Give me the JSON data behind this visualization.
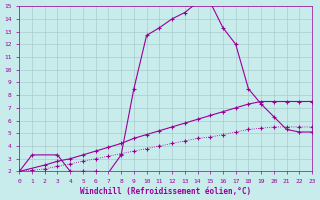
{
  "xlabel": "Windchill (Refroidissement éolien,°C)",
  "bg_color": "#c8ecec",
  "line_color": "#990099",
  "grid_color": "#aacccc",
  "axis_label_color": "#990099",
  "tick_color": "#990099",
  "xlim": [
    0,
    23
  ],
  "ylim": [
    2,
    15
  ],
  "xticks": [
    0,
    1,
    2,
    3,
    4,
    5,
    6,
    7,
    8,
    9,
    10,
    11,
    12,
    13,
    14,
    15,
    16,
    17,
    18,
    19,
    20,
    21,
    22,
    23
  ],
  "yticks": [
    2,
    3,
    4,
    5,
    6,
    7,
    8,
    9,
    10,
    11,
    12,
    13,
    14,
    15
  ],
  "line1_x": [
    0,
    1,
    2,
    3,
    4,
    5,
    6,
    7,
    8,
    9,
    10,
    11,
    12,
    13,
    14,
    15,
    16,
    17,
    18,
    19,
    20,
    21,
    22,
    23
  ],
  "line1_y": [
    2.0,
    2.1,
    2.2,
    2.4,
    2.6,
    2.8,
    3.0,
    3.2,
    3.4,
    3.6,
    3.8,
    4.0,
    4.2,
    4.4,
    4.6,
    4.7,
    4.9,
    5.1,
    5.3,
    5.4,
    5.5,
    5.5,
    5.5,
    5.5
  ],
  "line2_x": [
    0,
    2,
    3,
    4,
    5,
    6,
    7,
    8,
    9,
    10,
    11,
    12,
    13,
    14,
    15,
    16,
    17,
    18,
    19,
    20,
    21,
    22,
    23
  ],
  "line2_y": [
    2.0,
    2.5,
    2.8,
    3.0,
    3.3,
    3.6,
    3.9,
    4.2,
    4.6,
    4.9,
    5.2,
    5.5,
    5.8,
    6.1,
    6.4,
    6.7,
    7.0,
    7.3,
    7.5,
    7.5,
    7.5,
    7.5,
    7.5
  ],
  "line3_x": [
    0,
    1,
    3,
    4,
    5,
    6,
    7,
    8,
    9,
    10,
    11,
    12,
    13,
    14,
    15,
    16,
    17,
    18,
    19,
    20,
    21,
    22,
    23
  ],
  "line3_y": [
    2.0,
    3.3,
    3.3,
    2.0,
    2.0,
    2.0,
    1.9,
    3.3,
    8.5,
    12.7,
    13.3,
    14.0,
    14.5,
    15.3,
    15.3,
    13.3,
    12.0,
    8.5,
    7.3,
    6.3,
    5.3,
    5.1,
    5.1
  ],
  "line1_style": "dotted",
  "line2_style": "solid",
  "line3_style": "solid"
}
